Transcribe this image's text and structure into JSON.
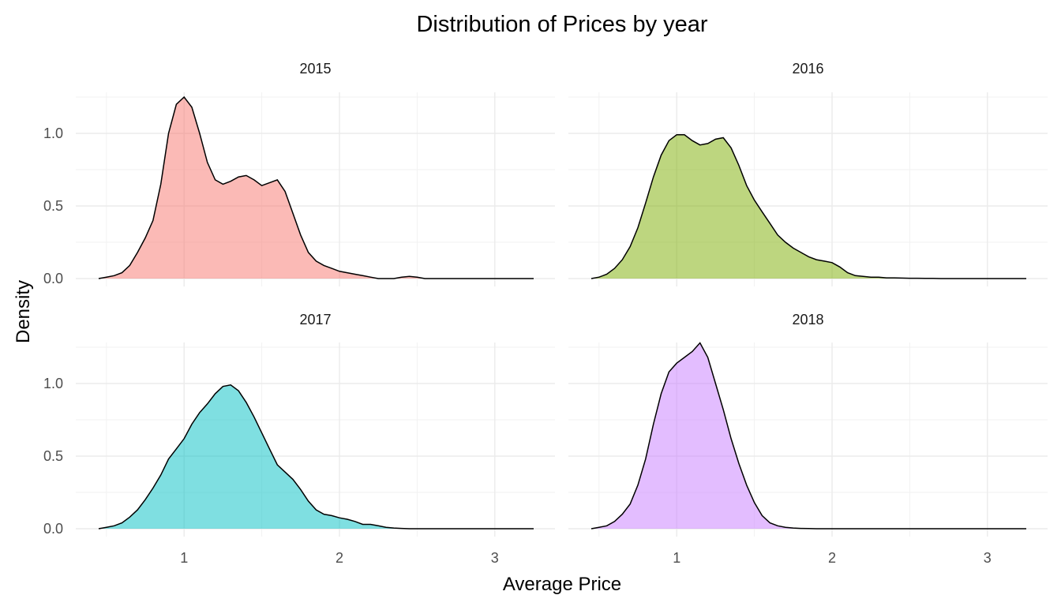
{
  "chart_data": {
    "type": "area",
    "title": "Distribution of Prices by year",
    "xlabel": "Average Price",
    "ylabel": "Density",
    "xlim": [
      0.44,
      3.25
    ],
    "ylim": [
      0,
      1.3
    ],
    "x_ticks": [
      1,
      2,
      3
    ],
    "x_tick_labels": [
      "1",
      "2",
      "3"
    ],
    "y_ticks": [
      0,
      0.5,
      1.0
    ],
    "y_tick_labels": [
      "0.0",
      "0.5",
      "1.0"
    ],
    "grid": true,
    "layout": "2x2 facets",
    "x": [
      0.45,
      0.5,
      0.55,
      0.6,
      0.65,
      0.7,
      0.75,
      0.8,
      0.85,
      0.9,
      0.95,
      1.0,
      1.05,
      1.1,
      1.15,
      1.2,
      1.25,
      1.3,
      1.35,
      1.4,
      1.45,
      1.5,
      1.55,
      1.6,
      1.65,
      1.7,
      1.75,
      1.8,
      1.85,
      1.9,
      1.95,
      2.0,
      2.05,
      2.1,
      2.15,
      2.2,
      2.25,
      2.3,
      2.35,
      2.4,
      2.45,
      2.5,
      2.55,
      2.6,
      2.65,
      2.7,
      2.75,
      2.8,
      2.85,
      2.9,
      2.95,
      3.0,
      3.05,
      3.1,
      3.15,
      3.2,
      3.25
    ],
    "facets": [
      {
        "label": "2015",
        "color": "#F8766D",
        "y": [
          0.0,
          0.01,
          0.02,
          0.04,
          0.09,
          0.18,
          0.28,
          0.4,
          0.65,
          1.0,
          1.2,
          1.25,
          1.18,
          1.0,
          0.8,
          0.68,
          0.65,
          0.67,
          0.7,
          0.71,
          0.68,
          0.64,
          0.66,
          0.68,
          0.6,
          0.45,
          0.3,
          0.18,
          0.12,
          0.09,
          0.07,
          0.05,
          0.04,
          0.03,
          0.02,
          0.01,
          0.0,
          0.0,
          0.0,
          0.01,
          0.015,
          0.01,
          0.0,
          0.0,
          0.0,
          0.0,
          0.0,
          0.0,
          0.0,
          0.0,
          0.0,
          0.0,
          0.0,
          0.0,
          0.0,
          0.0,
          0.0
        ]
      },
      {
        "label": "2016",
        "color": "#7CAE00",
        "y": [
          0.0,
          0.01,
          0.03,
          0.07,
          0.13,
          0.22,
          0.35,
          0.52,
          0.7,
          0.85,
          0.95,
          0.99,
          0.99,
          0.95,
          0.92,
          0.93,
          0.96,
          0.97,
          0.9,
          0.78,
          0.64,
          0.54,
          0.46,
          0.38,
          0.3,
          0.25,
          0.21,
          0.18,
          0.15,
          0.13,
          0.12,
          0.11,
          0.08,
          0.04,
          0.02,
          0.015,
          0.01,
          0.01,
          0.005,
          0.005,
          0.003,
          0.002,
          0.002,
          0.001,
          0.001,
          0.0,
          0.0,
          0.0,
          0.0,
          0.0,
          0.0,
          0.0,
          0.0,
          0.0,
          0.0,
          0.0,
          0.0
        ]
      },
      {
        "label": "2017",
        "color": "#00BFC4",
        "y": [
          0.0,
          0.01,
          0.02,
          0.04,
          0.08,
          0.13,
          0.2,
          0.28,
          0.37,
          0.48,
          0.55,
          0.62,
          0.72,
          0.8,
          0.86,
          0.93,
          0.98,
          0.99,
          0.95,
          0.87,
          0.77,
          0.66,
          0.55,
          0.44,
          0.39,
          0.34,
          0.27,
          0.19,
          0.13,
          0.1,
          0.09,
          0.075,
          0.065,
          0.05,
          0.03,
          0.03,
          0.02,
          0.01,
          0.005,
          0.002,
          0.0,
          0.0,
          0.0,
          0.0,
          0.0,
          0.0,
          0.0,
          0.0,
          0.0,
          0.0,
          0.0,
          0.0,
          0.0,
          0.0,
          0.0,
          0.0,
          0.0
        ]
      },
      {
        "label": "2018",
        "color": "#C77CFF",
        "y": [
          0.0,
          0.01,
          0.02,
          0.05,
          0.1,
          0.17,
          0.3,
          0.48,
          0.72,
          0.93,
          1.08,
          1.14,
          1.18,
          1.22,
          1.28,
          1.18,
          1.0,
          0.82,
          0.62,
          0.45,
          0.3,
          0.18,
          0.09,
          0.04,
          0.02,
          0.01,
          0.005,
          0.002,
          0.001,
          0.0,
          0.0,
          0.0,
          0.0,
          0.0,
          0.0,
          0.0,
          0.0,
          0.0,
          0.0,
          0.0,
          0.0,
          0.0,
          0.0,
          0.0,
          0.0,
          0.0,
          0.0,
          0.0,
          0.0,
          0.0,
          0.0,
          0.0,
          0.0,
          0.0,
          0.0,
          0.0,
          0.0
        ]
      }
    ]
  }
}
